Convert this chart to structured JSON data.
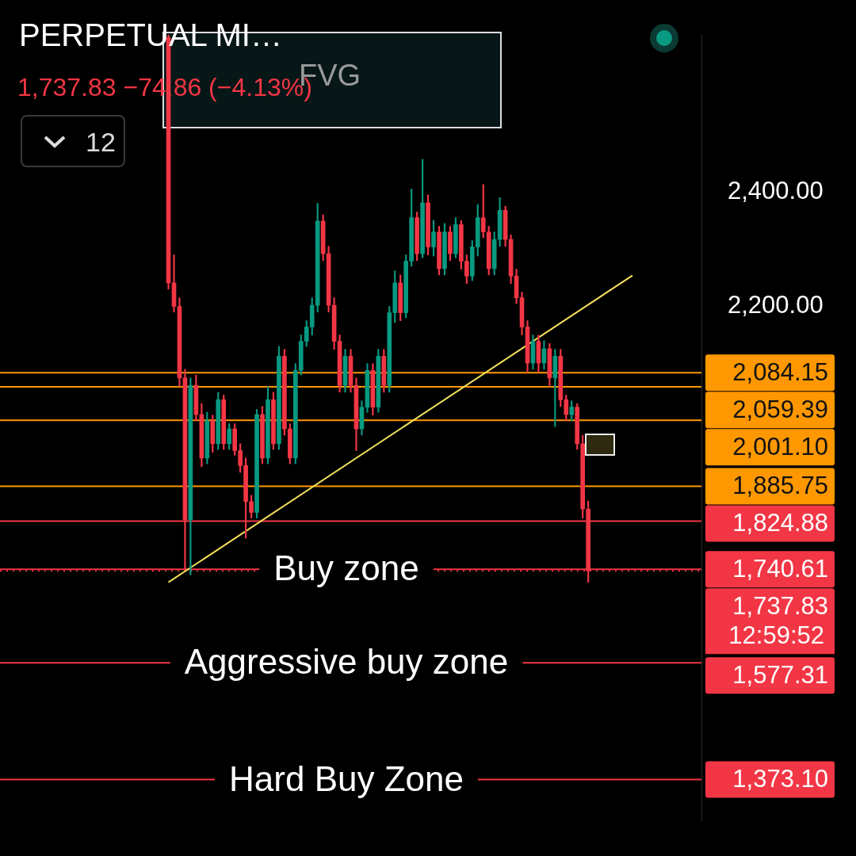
{
  "chart_data": {
    "type": "candlestick",
    "title": "PERPETUAL MI…",
    "subtitle": "1,737.83 −74.86 (−4.13%)",
    "categories": [
      null,
      null,
      null,
      null,
      null,
      null,
      null,
      null,
      null,
      null,
      null,
      null,
      null,
      null,
      null,
      null,
      null,
      null,
      null,
      null,
      null,
      null,
      null,
      null,
      null,
      null,
      null,
      null,
      null,
      null,
      null,
      null,
      null,
      null,
      null,
      null,
      null,
      null,
      null,
      null,
      null,
      null,
      null,
      null,
      null,
      null,
      null,
      null,
      null,
      null,
      null,
      null,
      null,
      null,
      null,
      null,
      null,
      null,
      null,
      null,
      null,
      null,
      null,
      null,
      null,
      null,
      null,
      null,
      null,
      null,
      null,
      null,
      null,
      null,
      null,
      null,
      null,
      null,
      null,
      null,
      null,
      null,
      null,
      null,
      null,
      null,
      null,
      null,
      null,
      null,
      null,
      null,
      null,
      null,
      null,
      null,
      null,
      null,
      null,
      null,
      null,
      null,
      null,
      null,
      null,
      null,
      null,
      null,
      null,
      null,
      null,
      null,
      null,
      null,
      null,
      null,
      null,
      null,
      null,
      null,
      null,
      null,
      null,
      null,
      null,
      null,
      null
    ],
    "ohlc": [
      null,
      null,
      null,
      null,
      null,
      null,
      null,
      null,
      null,
      null,
      null,
      null,
      null,
      null,
      null,
      null,
      null,
      null,
      null,
      null,
      null,
      null,
      null,
      null,
      null,
      null,
      null,
      null,
      null,
      null,
      [
        2670,
        2674,
        2230,
        2241
      ],
      [
        2241,
        2290,
        2190,
        2200
      ],
      [
        2200,
        2215,
        2060,
        2075
      ],
      [
        2075,
        2090,
        1740,
        1827
      ],
      [
        1827,
        2075,
        1731,
        2062
      ],
      [
        2062,
        2080,
        2000,
        2011
      ],
      [
        2011,
        2030,
        1920,
        1935
      ],
      [
        1935,
        2015,
        1925,
        2000
      ],
      [
        2000,
        2010,
        1945,
        1960
      ],
      [
        1960,
        2050,
        1950,
        2037
      ],
      [
        2037,
        2045,
        1950,
        1960
      ],
      [
        1960,
        1995,
        1950,
        1986
      ],
      [
        1986,
        1995,
        1940,
        1948
      ],
      [
        1948,
        1960,
        1910,
        1922
      ],
      [
        1922,
        1935,
        1795,
        1859
      ],
      [
        1859,
        1870,
        1830,
        1840
      ],
      [
        1840,
        2020,
        1830,
        2011
      ],
      [
        2011,
        2025,
        1925,
        1935
      ],
      [
        1935,
        2060,
        1925,
        2037
      ],
      [
        2037,
        2050,
        1950,
        1960
      ],
      [
        1960,
        2130,
        1950,
        2113
      ],
      [
        2113,
        2125,
        1975,
        1986
      ],
      [
        1986,
        1995,
        1925,
        1935
      ],
      [
        1935,
        2100,
        1925,
        2088
      ],
      [
        2088,
        2150,
        2080,
        2139
      ],
      [
        2139,
        2175,
        2130,
        2164
      ],
      [
        2164,
        2215,
        2150,
        2202
      ],
      [
        2202,
        2380,
        2190,
        2349
      ],
      [
        2349,
        2360,
        2280,
        2292
      ],
      [
        2292,
        2305,
        2190,
        2202
      ],
      [
        2202,
        2215,
        2125,
        2139
      ],
      [
        2139,
        2150,
        2050,
        2062
      ],
      [
        2062,
        2125,
        2050,
        2113
      ],
      [
        2113,
        2125,
        2050,
        2062
      ],
      [
        2062,
        2075,
        1948,
        1986
      ],
      [
        1986,
        2035,
        1975,
        2024
      ],
      [
        2024,
        2100,
        2015,
        2088
      ],
      [
        2088,
        2100,
        2010,
        2024
      ],
      [
        2024,
        2125,
        2015,
        2113
      ],
      [
        2113,
        2125,
        2050,
        2062
      ],
      [
        2062,
        2200,
        2050,
        2189
      ],
      [
        2189,
        2262,
        2172,
        2241
      ],
      [
        2241,
        2255,
        2175,
        2189
      ],
      [
        2189,
        2290,
        2180,
        2279
      ],
      [
        2279,
        2405,
        2270,
        2355
      ],
      [
        2355,
        2365,
        2280,
        2292
      ],
      [
        2292,
        2457,
        2285,
        2381
      ],
      [
        2381,
        2395,
        2290,
        2304
      ],
      [
        2304,
        2350,
        2288,
        2330
      ],
      [
        2330,
        2340,
        2255,
        2266
      ],
      [
        2266,
        2345,
        2255,
        2330
      ],
      [
        2330,
        2340,
        2280,
        2292
      ],
      [
        2292,
        2355,
        2285,
        2343
      ],
      [
        2343,
        2350,
        2265,
        2279
      ],
      [
        2279,
        2290,
        2240,
        2253
      ],
      [
        2253,
        2315,
        2245,
        2304
      ],
      [
        2304,
        2378,
        2288,
        2355
      ],
      [
        2355,
        2413,
        2320,
        2330
      ],
      [
        2330,
        2340,
        2255,
        2266
      ],
      [
        2266,
        2330,
        2255,
        2317
      ],
      [
        2317,
        2390,
        2305,
        2368
      ],
      [
        2368,
        2375,
        2305,
        2317
      ],
      [
        2317,
        2325,
        2240,
        2253
      ],
      [
        2253,
        2265,
        2205,
        2215
      ],
      [
        2215,
        2225,
        2150,
        2164
      ],
      [
        2164,
        2175,
        2085,
        2101
      ],
      [
        2101,
        2150,
        2090,
        2139
      ],
      [
        2139,
        2150,
        2085,
        2101
      ],
      [
        2101,
        2140,
        2090,
        2126
      ],
      [
        2126,
        2135,
        2060,
        2075
      ],
      [
        2075,
        2125,
        1990,
        2113
      ],
      [
        2113,
        2125,
        2025,
        2037
      ],
      [
        2037,
        2045,
        2000,
        2011
      ],
      [
        2011,
        2035,
        2000,
        2024
      ],
      [
        2024,
        2030,
        1950,
        1960
      ],
      [
        1960,
        1975,
        1830,
        1846
      ],
      [
        1846,
        1860,
        1718,
        1738
      ],
      null,
      null,
      null,
      null,
      null,
      null,
      null,
      null,
      null,
      null,
      null,
      null,
      null,
      null,
      null,
      null,
      null,
      null,
      null,
      null
    ],
    "series": [
      {
        "type": "line",
        "color": "#f5e15a",
        "values": [
          null,
          null,
          null,
          null,
          null,
          null,
          null,
          null,
          null,
          null,
          null,
          null,
          null,
          null,
          null,
          null,
          null,
          null,
          null,
          null,
          null,
          null,
          null,
          null,
          null,
          null,
          null,
          null,
          null,
          null,
          1718,
          null,
          null,
          null,
          null,
          null,
          null,
          null,
          null,
          null,
          null,
          null,
          null,
          null,
          null,
          null,
          null,
          null,
          null,
          null,
          null,
          null,
          null,
          null,
          null,
          null,
          null,
          null,
          null,
          null,
          null,
          null,
          null,
          null,
          null,
          null,
          null,
          null,
          null,
          null,
          null,
          null,
          null,
          null,
          null,
          null,
          null,
          null,
          null,
          null,
          null,
          null,
          null,
          null,
          null,
          null,
          null,
          null,
          null,
          null,
          null,
          null,
          null,
          null,
          null,
          null,
          null,
          null,
          null,
          null,
          null,
          null,
          null,
          null,
          null,
          null,
          null,
          null,
          null,
          null,
          null,
          null,
          null,
          null,
          2254,
          null,
          null,
          null,
          null,
          null,
          null,
          null,
          null,
          null,
          null,
          null,
          null
        ]
      }
    ],
    "ylim": [
      1300,
      2675
    ],
    "yticks": [
      {
        "value": 2200,
        "label": "2,200.00"
      },
      {
        "value": 2400,
        "label": "2,400.00"
      }
    ],
    "ref_lines": [
      {
        "axis": "y",
        "value": 2084.15,
        "label": "2,084.15",
        "color": "#ff9800"
      },
      {
        "axis": "y",
        "value": 2059.39,
        "label": "2,059.39",
        "color": "#ff9800"
      },
      {
        "axis": "y",
        "value": 2001.1,
        "label": "2,001.10",
        "color": "#ff9800"
      },
      {
        "axis": "y",
        "value": 1885.75,
        "label": "1,885.75",
        "color": "#ff9800"
      },
      {
        "axis": "y",
        "value": 1824.88,
        "label": "1,824.88",
        "color": "#f23645"
      },
      {
        "axis": "y",
        "value": 1740.61,
        "label": "1,740.61",
        "color": "#f23645"
      },
      {
        "axis": "y",
        "value": 1737.83,
        "label": "1,737.83",
        "color": "#f23645",
        "line_style": "dotted"
      },
      {
        "axis": "y",
        "value": 1577.31,
        "label": "1,577.31",
        "color": "#f23645"
      },
      {
        "axis": "y",
        "value": 1373.1,
        "label": "1,373.10",
        "color": "#f23645"
      }
    ],
    "annotations": [
      "FVG",
      "12",
      "12:59:52",
      {
        "text": "Buy zone",
        "y": 1740.61
      },
      {
        "text": "Aggressive buy zone",
        "y": 1577.31
      },
      {
        "text": "Hard Buy Zone",
        "y": 1373.1
      }
    ],
    "grid": false,
    "legend": false,
    "tick_labels": "y"
  }
}
